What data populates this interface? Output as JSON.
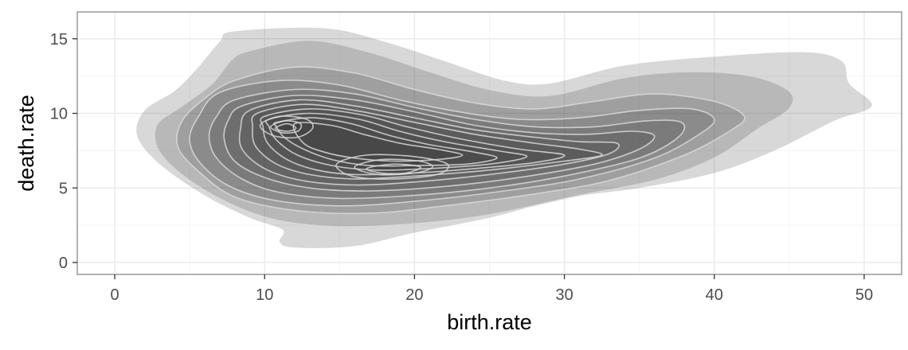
{
  "chart_data": {
    "type": "density2d-filled",
    "title": "",
    "xlabel": "birth.rate",
    "ylabel": "death.rate",
    "xlim": [
      -2.5,
      52.5
    ],
    "ylim": [
      -0.8,
      16.8
    ],
    "x_ticks": [
      0,
      10,
      20,
      30,
      40,
      50
    ],
    "y_ticks": [
      0,
      5,
      10,
      15
    ],
    "x_tick_labels": [
      "0",
      "10",
      "20",
      "30",
      "40",
      "50"
    ],
    "y_tick_labels": [
      "0",
      "5",
      "10",
      "15"
    ],
    "grid": true,
    "legend": "none",
    "theme": "bw",
    "colors": {
      "panel_border": "#7f7f7f",
      "grid_major": "#ebebeb",
      "grid_minor": "#f5f5f5",
      "tick": "#333333",
      "band_fill": "#3c3c3c",
      "contour_line": "#d9d9d9"
    },
    "band_opacity": 0.2,
    "modes": [
      {
        "x": 11,
        "y": 9
      },
      {
        "x": 19,
        "y": 6.2
      }
    ],
    "contours": [
      {
        "level": 1,
        "points": [
          [
            8,
            15.5
          ],
          [
            14,
            15.7
          ],
          [
            18,
            14.8
          ],
          [
            22,
            13.5
          ],
          [
            26,
            12.2
          ],
          [
            29,
            12.0
          ],
          [
            34,
            13.2
          ],
          [
            40,
            13.8
          ],
          [
            46,
            14.1
          ],
          [
            48.5,
            13.5
          ],
          [
            49,
            12
          ],
          [
            50.5,
            10.5
          ],
          [
            48,
            9.5
          ],
          [
            44,
            7.5
          ],
          [
            40,
            6
          ],
          [
            35,
            5
          ],
          [
            30,
            4.3
          ],
          [
            25,
            3
          ],
          [
            20,
            2
          ],
          [
            16,
            1.1
          ],
          [
            12,
            1.0
          ],
          [
            11,
            1.4
          ],
          [
            11.2,
            2.2
          ],
          [
            9,
            3
          ],
          [
            6,
            4.5
          ],
          [
            3,
            6.6
          ],
          [
            1.5,
            8.5
          ],
          [
            2,
            10.2
          ],
          [
            4,
            11.5
          ],
          [
            5.5,
            13
          ],
          [
            7,
            14.8
          ]
        ]
      },
      {
        "level": 2,
        "points": [
          [
            9,
            14.2
          ],
          [
            13,
            14.9
          ],
          [
            17,
            14.1
          ],
          [
            21,
            12.8
          ],
          [
            25,
            11.6
          ],
          [
            29,
            11.2
          ],
          [
            34,
            12.4
          ],
          [
            38.5,
            12.8
          ],
          [
            42.5,
            12.5
          ],
          [
            45,
            11.5
          ],
          [
            45,
            10.3
          ],
          [
            43,
            9
          ],
          [
            40,
            7
          ],
          [
            36,
            5.5
          ],
          [
            31,
            4.5
          ],
          [
            25,
            3.2
          ],
          [
            20,
            2.6
          ],
          [
            15,
            2.4
          ],
          [
            11,
            2.8
          ],
          [
            8,
            3.8
          ],
          [
            5,
            5.5
          ],
          [
            3,
            7.4
          ],
          [
            2.8,
            9.2
          ],
          [
            4.5,
            10.5
          ],
          [
            6.5,
            12
          ],
          [
            7.8,
            13.6
          ]
        ]
      },
      {
        "level": 3,
        "points": [
          [
            8,
            12.2
          ],
          [
            12,
            13.1
          ],
          [
            16,
            12.7
          ],
          [
            20,
            11.6
          ],
          [
            24,
            10.7
          ],
          [
            28,
            10.3
          ],
          [
            32,
            10.8
          ],
          [
            36,
            11.3
          ],
          [
            40,
            10.8
          ],
          [
            42,
            9.8
          ],
          [
            41,
            8.8
          ],
          [
            38,
            7.2
          ],
          [
            33,
            5.5
          ],
          [
            28,
            4.6
          ],
          [
            22,
            3.8
          ],
          [
            17,
            3.3
          ],
          [
            12,
            3.5
          ],
          [
            8,
            4.4
          ],
          [
            5.5,
            6.2
          ],
          [
            4.2,
            7.8
          ],
          [
            4.5,
            9.5
          ],
          [
            6,
            11
          ]
        ]
      },
      {
        "level": 4,
        "points": [
          [
            7,
            11.4
          ],
          [
            11,
            12.2
          ],
          [
            15,
            11.9
          ],
          [
            19,
            10.9
          ],
          [
            23,
            10.1
          ],
          [
            27,
            9.6
          ],
          [
            31,
            9.7
          ],
          [
            35,
            10.2
          ],
          [
            38.5,
            10.3
          ],
          [
            40,
            9.6
          ],
          [
            39,
            8.6
          ],
          [
            36,
            7
          ],
          [
            31,
            5.6
          ],
          [
            26,
            4.8
          ],
          [
            20,
            4.1
          ],
          [
            15,
            3.8
          ],
          [
            10.5,
            4.2
          ],
          [
            7.5,
            5.2
          ],
          [
            5.6,
            6.8
          ],
          [
            5,
            8.3
          ],
          [
            5.6,
            9.8
          ]
        ]
      },
      {
        "level": 5,
        "points": [
          [
            8,
            10.9
          ],
          [
            12,
            11.6
          ],
          [
            16,
            11.3
          ],
          [
            20,
            10.4
          ],
          [
            24,
            9.6
          ],
          [
            28,
            9.1
          ],
          [
            32,
            9.1
          ],
          [
            35.5,
            9.5
          ],
          [
            37.8,
            9.4
          ],
          [
            37.6,
            8.4
          ],
          [
            35,
            7
          ],
          [
            30,
            5.8
          ],
          [
            25,
            5
          ],
          [
            20,
            4.5
          ],
          [
            15,
            4.3
          ],
          [
            11,
            4.7
          ],
          [
            8.5,
            5.6
          ],
          [
            6.8,
            7
          ],
          [
            6.3,
            8.5
          ],
          [
            6.8,
            9.8
          ]
        ]
      },
      {
        "level": 6,
        "points": [
          [
            8.5,
            10.5
          ],
          [
            12,
            11.2
          ],
          [
            16,
            10.9
          ],
          [
            20,
            10.1
          ],
          [
            24,
            9.2
          ],
          [
            28,
            8.7
          ],
          [
            31.5,
            8.6
          ],
          [
            34.5,
            8.8
          ],
          [
            36,
            8.5
          ],
          [
            35,
            7.6
          ],
          [
            32,
            6.6
          ],
          [
            27,
            5.7
          ],
          [
            22,
            5.1
          ],
          [
            17,
            4.8
          ],
          [
            13,
            5
          ],
          [
            10,
            5.7
          ],
          [
            8,
            6.8
          ],
          [
            7.3,
            8.3
          ],
          [
            7.6,
            9.6
          ]
        ]
      },
      {
        "level": 7,
        "points": [
          [
            9,
            10.2
          ],
          [
            12.3,
            10.9
          ],
          [
            16,
            10.5
          ],
          [
            20,
            9.7
          ],
          [
            24,
            8.9
          ],
          [
            28,
            8.4
          ],
          [
            31,
            8.1
          ],
          [
            33.5,
            8
          ],
          [
            33,
            7.3
          ],
          [
            30,
            6.6
          ],
          [
            25,
            5.9
          ],
          [
            20,
            5.4
          ],
          [
            16,
            5.2
          ],
          [
            12.5,
            5.5
          ],
          [
            10,
            6.3
          ],
          [
            8.5,
            7.6
          ],
          [
            8.4,
            9
          ]
        ]
      },
      {
        "level": 8,
        "points": [
          [
            9.5,
            10
          ],
          [
            12.5,
            10.6
          ],
          [
            16,
            10.2
          ],
          [
            20,
            9.4
          ],
          [
            24,
            8.6
          ],
          [
            28,
            8
          ],
          [
            31,
            7.6
          ],
          [
            32.5,
            7.2
          ],
          [
            30,
            6.8
          ],
          [
            25,
            6.2
          ],
          [
            20,
            5.8
          ],
          [
            16,
            5.6
          ],
          [
            13,
            5.9
          ],
          [
            10.8,
            6.6
          ],
          [
            9.4,
            7.8
          ],
          [
            9.2,
            9.1
          ]
        ]
      },
      {
        "level": 9,
        "points": [
          [
            10,
            9.8
          ],
          [
            13,
            10.3
          ],
          [
            16.5,
            9.9
          ],
          [
            19.5,
            9.1
          ],
          [
            23,
            8.3
          ],
          [
            27,
            7.6
          ],
          [
            30,
            7.2
          ],
          [
            28,
            6.7
          ],
          [
            24,
            6.3
          ],
          [
            20,
            6
          ],
          [
            16,
            5.9
          ],
          [
            13.5,
            6.2
          ],
          [
            11.5,
            6.9
          ],
          [
            10.2,
            8
          ],
          [
            9.9,
            9.1
          ]
        ]
      },
      {
        "level": 10,
        "points": [
          [
            10.3,
            9.6
          ],
          [
            13,
            10
          ],
          [
            16.3,
            9.6
          ],
          [
            19,
            8.8
          ],
          [
            22,
            8.1
          ],
          [
            25.5,
            7.5
          ],
          [
            27.5,
            7.1
          ],
          [
            25,
            6.6
          ],
          [
            21,
            6.3
          ],
          [
            17.5,
            6.2
          ],
          [
            14.5,
            6.5
          ],
          [
            12.2,
            7.2
          ],
          [
            10.8,
            8.2
          ],
          [
            10.3,
            9.1
          ]
        ]
      },
      {
        "level": 11,
        "points": [
          [
            10.8,
            9.4
          ],
          [
            13.2,
            9.7
          ],
          [
            15.8,
            9.3
          ],
          [
            18.4,
            8.5
          ],
          [
            21,
            7.9
          ],
          [
            24,
            7.4
          ],
          [
            25.5,
            7
          ],
          [
            23.5,
            6.6
          ],
          [
            20,
            6.5
          ],
          [
            17,
            6.5
          ],
          [
            14.5,
            6.9
          ],
          [
            12.6,
            7.6
          ],
          [
            11.3,
            8.4
          ],
          [
            10.8,
            9.1
          ]
        ]
      },
      {
        "level": 12,
        "points": [
          [
            12,
            9.3
          ],
          [
            14.4,
            9.2
          ],
          [
            16.6,
            8.6
          ],
          [
            19,
            8
          ],
          [
            21.5,
            7.6
          ],
          [
            23.2,
            7.2
          ],
          [
            21.5,
            6.9
          ],
          [
            18.5,
            6.8
          ],
          [
            16,
            7
          ],
          [
            14,
            7.4
          ],
          [
            12.6,
            8
          ]
        ]
      },
      {
        "level": 13,
        "points": [
          [
            9.7,
            9.2
          ],
          [
            11,
            9.8
          ],
          [
            12.8,
            9.6
          ],
          [
            13.2,
            9
          ],
          [
            12.2,
            8.4
          ],
          [
            10.6,
            8.5
          ]
        ]
      },
      {
        "level": 13,
        "points": [
          [
            14.8,
            6.6
          ],
          [
            16.8,
            7.2
          ],
          [
            20,
            7.1
          ],
          [
            22.2,
            6.6
          ],
          [
            21.5,
            5.9
          ],
          [
            18.5,
            5.6
          ],
          [
            15.8,
            5.8
          ]
        ]
      },
      {
        "level": 14,
        "points": [
          [
            10.4,
            9.1
          ],
          [
            11.4,
            9.5
          ],
          [
            12.4,
            9.3
          ],
          [
            12.2,
            8.8
          ],
          [
            11.2,
            8.7
          ]
        ]
      },
      {
        "level": 14,
        "points": [
          [
            16,
            6.4
          ],
          [
            17.8,
            6.9
          ],
          [
            20.3,
            6.8
          ],
          [
            21.2,
            6.4
          ],
          [
            20,
            6
          ],
          [
            17.6,
            5.9
          ]
        ]
      },
      {
        "level": 15,
        "points": [
          [
            10.7,
            9
          ],
          [
            11.5,
            9.3
          ],
          [
            12.1,
            9
          ],
          [
            11.5,
            8.8
          ]
        ]
      },
      {
        "level": 15,
        "points": [
          [
            16.8,
            6.3
          ],
          [
            18.6,
            6.6
          ],
          [
            20.4,
            6.4
          ],
          [
            19.4,
            6.0
          ],
          [
            17.8,
            6.0
          ]
        ]
      }
    ]
  }
}
